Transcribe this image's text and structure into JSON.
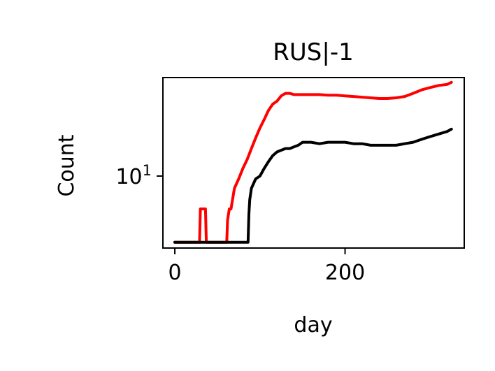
{
  "chart_data": {
    "type": "line",
    "title": "RUS|-1",
    "xlabel": "day",
    "ylabel": "Count",
    "x_ticks": [
      {
        "value": 0,
        "label": "0"
      },
      {
        "value": 200,
        "label": "200"
      }
    ],
    "y_ticks": [
      {
        "value": 10,
        "base": "10",
        "exp": "1"
      }
    ],
    "yscale": "log",
    "xlim": [
      -14,
      340
    ],
    "ylim": [
      2.7,
      60
    ],
    "grid": false,
    "series": [
      {
        "color": "#ff0000",
        "points": [
          [
            0,
            3
          ],
          [
            29,
            3
          ],
          [
            30,
            5.5
          ],
          [
            36,
            5.5
          ],
          [
            37,
            3
          ],
          [
            61,
            3
          ],
          [
            62,
            4.5
          ],
          [
            64,
            5.5
          ],
          [
            66,
            5.5
          ],
          [
            70,
            8
          ],
          [
            75,
            9.5
          ],
          [
            80,
            11.5
          ],
          [
            85,
            13.5
          ],
          [
            90,
            16.5
          ],
          [
            95,
            20
          ],
          [
            100,
            24
          ],
          [
            105,
            28
          ],
          [
            110,
            33
          ],
          [
            115,
            37
          ],
          [
            120,
            39
          ],
          [
            125,
            43
          ],
          [
            130,
            45
          ],
          [
            135,
            45
          ],
          [
            140,
            44
          ],
          [
            150,
            44
          ],
          [
            160,
            44
          ],
          [
            170,
            44
          ],
          [
            180,
            43.5
          ],
          [
            190,
            43.5
          ],
          [
            200,
            43
          ],
          [
            210,
            42.5
          ],
          [
            220,
            42
          ],
          [
            230,
            41.5
          ],
          [
            240,
            41
          ],
          [
            250,
            41
          ],
          [
            260,
            41.5
          ],
          [
            270,
            42.5
          ],
          [
            280,
            45
          ],
          [
            290,
            48
          ],
          [
            300,
            50
          ],
          [
            310,
            52
          ],
          [
            320,
            53
          ],
          [
            325,
            55
          ]
        ]
      },
      {
        "color": "#000000",
        "points": [
          [
            0,
            3
          ],
          [
            86,
            3
          ],
          [
            87,
            5
          ],
          [
            88,
            6.5
          ],
          [
            90,
            8
          ],
          [
            95,
            9.5
          ],
          [
            100,
            10
          ],
          [
            105,
            11.5
          ],
          [
            110,
            13
          ],
          [
            115,
            14.5
          ],
          [
            120,
            15.5
          ],
          [
            125,
            16
          ],
          [
            130,
            16.5
          ],
          [
            135,
            16.5
          ],
          [
            140,
            17
          ],
          [
            145,
            17.5
          ],
          [
            150,
            18.5
          ],
          [
            160,
            18.5
          ],
          [
            170,
            18
          ],
          [
            180,
            18.5
          ],
          [
            190,
            18.5
          ],
          [
            200,
            18.5
          ],
          [
            210,
            18
          ],
          [
            220,
            18
          ],
          [
            230,
            17.5
          ],
          [
            240,
            17.5
          ],
          [
            250,
            17.5
          ],
          [
            260,
            17.5
          ],
          [
            270,
            18
          ],
          [
            280,
            18.5
          ],
          [
            290,
            19.5
          ],
          [
            300,
            20.5
          ],
          [
            310,
            21.5
          ],
          [
            320,
            22.5
          ],
          [
            325,
            23.5
          ]
        ]
      }
    ]
  }
}
